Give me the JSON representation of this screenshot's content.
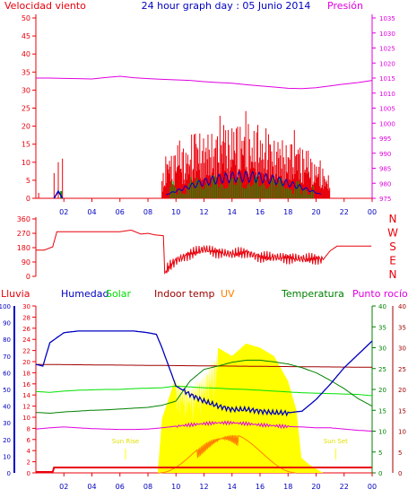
{
  "title": "24 hour graph day : 05 Junio 2014",
  "colors": {
    "red": "#e8000b",
    "magenta": "#e000e0",
    "blue": "#0000c0",
    "green": "#00a000",
    "lime": "#00e000",
    "yellow": "#ffff00",
    "orange": "#ff8000",
    "darkred": "#a00000",
    "darkgreen": "#008000"
  },
  "chart_data": [
    {
      "type": "line",
      "id": "wind-pressure",
      "left_label": "Velocidad viento",
      "right_label": "Presión",
      "left_ticks": [
        "0",
        "5",
        "10",
        "15",
        "20",
        "25",
        "30",
        "35",
        "40",
        "45",
        "50"
      ],
      "right_ticks": [
        "975",
        "980",
        "985",
        "990",
        "995",
        "1000",
        "1005",
        "1010",
        "1015",
        "1020",
        "1025",
        "1030",
        "1035"
      ],
      "x_ticks": [
        "02",
        "04",
        "06",
        "08",
        "10",
        "12",
        "14",
        "16",
        "18",
        "20",
        "22",
        "00"
      ],
      "ylim_left": [
        0,
        50
      ],
      "ylim_right": [
        975,
        1035
      ],
      "series": [
        {
          "name": "pressure",
          "axis": "right",
          "x": [
            0,
            1,
            2,
            3,
            4,
            5,
            6,
            7,
            8,
            9,
            10,
            11,
            12,
            13,
            14,
            15,
            16,
            17,
            18,
            19,
            20,
            21,
            22,
            23,
            24
          ],
          "y": [
            1015,
            1015,
            1014.9,
            1014.8,
            1014.7,
            1015.2,
            1015.6,
            1015.1,
            1014.8,
            1014.6,
            1014.4,
            1014.2,
            1013.8,
            1013.5,
            1013.3,
            1012.8,
            1012.4,
            1012,
            1011.6,
            1011.5,
            1011.8,
            1012.4,
            1013.0,
            1013.5,
            1014.2
          ]
        },
        {
          "name": "wind gust",
          "axis": "left",
          "style": "spikes",
          "x": [
            1.3,
            1.6,
            1.9,
            9.0,
            9.4,
            9.8,
            10.2,
            10.6,
            11.0,
            11.4,
            11.8,
            12.2,
            12.6,
            13.0,
            13.4,
            13.8,
            14.2,
            14.6,
            15.0,
            15.4,
            15.8,
            16.2,
            16.6,
            17.0,
            17.4,
            17.8,
            18.2,
            18.6,
            19.0,
            19.4,
            19.8,
            20.2,
            20.6,
            21.0
          ],
          "y": [
            7,
            10,
            11,
            6,
            15,
            12,
            19,
            14,
            16,
            23,
            17,
            20,
            18,
            22,
            25,
            19,
            24,
            21,
            26,
            18,
            23,
            17,
            22,
            16,
            19,
            15,
            18,
            20,
            14,
            16,
            10,
            12,
            8,
            6
          ]
        },
        {
          "name": "wind average",
          "axis": "left",
          "style": "green-bars",
          "x": [
            9.6,
            10.2,
            10.8,
            11.4,
            12.0,
            12.6,
            13.2,
            13.8,
            14.4,
            15.0,
            15.6,
            16.2,
            16.8,
            17.4,
            18.0,
            18.6,
            19.2,
            19.8
          ],
          "y": [
            3,
            4,
            3,
            5,
            4,
            5,
            6,
            5,
            6,
            5,
            6,
            5,
            4,
            5,
            4,
            3,
            3,
            2
          ]
        },
        {
          "name": "wind direction avg line",
          "axis": "left",
          "style": "line",
          "x": [
            1.3,
            1.8,
            9.3,
            10,
            11,
            12,
            13,
            14,
            15,
            16,
            17,
            18,
            19,
            19.8,
            20.4
          ],
          "y": [
            1,
            2,
            1,
            3,
            5,
            4,
            6,
            5,
            8,
            6,
            5,
            5,
            4,
            3,
            1
          ]
        }
      ]
    },
    {
      "type": "line",
      "id": "direction",
      "left_ticks": [
        "0",
        "90",
        "180",
        "270",
        "360"
      ],
      "right_labels": [
        "N",
        "W",
        "S",
        "E",
        "N"
      ],
      "ylim": [
        0,
        360
      ],
      "series": [
        {
          "name": "direction",
          "x": [
            0,
            0.6,
            1.2,
            1.5,
            3,
            6,
            6.8,
            7.5,
            8,
            8.5,
            9.1,
            9.2,
            9.5,
            10,
            11,
            12,
            13,
            14,
            15,
            16,
            17,
            18,
            19,
            20,
            20.5,
            21,
            21.5,
            24
          ],
          "y": [
            165,
            165,
            185,
            280,
            280,
            280,
            290,
            265,
            270,
            260,
            255,
            20,
            60,
            100,
            140,
            170,
            150,
            140,
            150,
            120,
            120,
            115,
            110,
            110,
            105,
            160,
            190,
            190
          ]
        }
      ]
    },
    {
      "type": "line",
      "id": "weather",
      "legend": [
        "Lluvia",
        "Humedad",
        "Solar",
        "Indoor temp",
        "UV",
        "Temperatura",
        "Punto rocío"
      ],
      "left1_ticks": [
        "0",
        "10",
        "20",
        "30",
        "40",
        "50",
        "60",
        "70",
        "80",
        "90",
        "100"
      ],
      "left2_ticks": [
        "0",
        "2",
        "4",
        "6",
        "8",
        "10",
        "12",
        "14",
        "16",
        "18",
        "20",
        "22",
        "24",
        "26",
        "28",
        "30"
      ],
      "right1_ticks": [
        "0",
        "5",
        "10",
        "15",
        "20",
        "25",
        "30",
        "35",
        "40"
      ],
      "right2_ticks": [
        "0",
        "5",
        "10",
        "15",
        "20",
        "25",
        "30",
        "35",
        "40"
      ],
      "x_ticks": [
        "02",
        "04",
        "06",
        "08",
        "10",
        "12",
        "14",
        "16",
        "18",
        "20",
        "22",
        "00"
      ],
      "sun_labels": [
        "Sun Rise",
        "Sun Set"
      ],
      "sun_times": [
        6.4,
        21.4
      ],
      "series": [
        {
          "name": "Humedad",
          "x": [
            0,
            0.5,
            1,
            2,
            3,
            4,
            5,
            6,
            7,
            8,
            8.6,
            9,
            10,
            11,
            12,
            13,
            14,
            15,
            16,
            17,
            18,
            19,
            20,
            21,
            22,
            23,
            24
          ],
          "y": [
            65,
            64,
            78,
            84,
            85,
            85,
            85,
            85,
            85,
            84,
            83,
            75,
            52,
            47,
            43,
            40,
            38,
            38,
            37,
            36,
            36,
            37,
            44,
            53,
            63,
            71,
            79
          ]
        },
        {
          "name": "Indoor temp",
          "x": [
            0,
            24
          ],
          "y": [
            26,
            25.3
          ]
        },
        {
          "name": "Temperatura",
          "x": [
            0,
            1,
            2,
            3,
            4,
            5,
            6,
            7,
            8,
            9,
            10,
            11,
            12,
            13,
            14,
            15,
            16,
            17,
            18,
            19,
            20,
            21,
            22,
            23,
            24
          ],
          "y": [
            14.5,
            14.3,
            14.6,
            14.8,
            15,
            15.1,
            15.3,
            15.5,
            15.7,
            16.2,
            17.2,
            22,
            24.8,
            25.6,
            26.5,
            27,
            27,
            26.6,
            26.1,
            25.2,
            24,
            22.2,
            20.2,
            17.8,
            16
          ]
        },
        {
          "name": "Punto rocío",
          "x": [
            0,
            1,
            2,
            3,
            4,
            5,
            6,
            7,
            8,
            9,
            10,
            11,
            12,
            13,
            14,
            15,
            16,
            17,
            18,
            19,
            20,
            21,
            22,
            23,
            24
          ],
          "y": [
            10.5,
            10.8,
            11,
            10.8,
            10.6,
            10.5,
            10.4,
            10.4,
            10.5,
            10.8,
            11.2,
            11.5,
            11.8,
            12,
            12,
            11.8,
            11.5,
            11.3,
            11.1,
            11,
            10.8,
            10.8,
            10.5,
            10.2,
            10
          ]
        },
        {
          "name": "Humedad2 green",
          "x": [
            0,
            1,
            2,
            3,
            4,
            5,
            6,
            7,
            8,
            9,
            10,
            11,
            12,
            13,
            14,
            15,
            16,
            17,
            18,
            19,
            20,
            21,
            22,
            23,
            24
          ],
          "y": [
            19.5,
            19.3,
            19.6,
            19.8,
            19.9,
            20,
            20,
            20.2,
            20.3,
            20.4,
            20.8,
            20.6,
            20.4,
            20.3,
            20.1,
            20.0,
            19.8,
            19.6,
            19.4,
            19.2,
            19.1,
            19.0,
            18.9,
            18.8,
            18.5
          ]
        },
        {
          "name": "Solar",
          "x": [
            8.7,
            9,
            10,
            11,
            12,
            13,
            14,
            15,
            16,
            17,
            18,
            18.6,
            19
          ],
          "y": [
            0,
            13,
            23,
            21,
            24,
            30,
            28,
            31,
            30,
            28,
            22,
            15,
            2
          ]
        },
        {
          "name": "UV",
          "x": [
            8.8,
            10,
            11,
            12,
            13,
            14,
            15,
            16,
            17,
            18,
            18.6
          ],
          "y": [
            0,
            2,
            4,
            6,
            8,
            9,
            9,
            8,
            6,
            3,
            0
          ]
        },
        {
          "name": "Lluvia",
          "x": [
            0,
            1.2,
            1.3,
            24
          ],
          "y": [
            0,
            0,
            1,
            1
          ]
        }
      ]
    }
  ]
}
